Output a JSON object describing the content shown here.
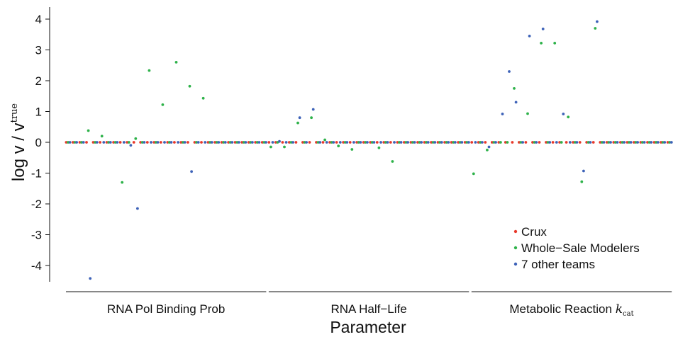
{
  "chart_data": {
    "type": "scatter",
    "xlabel": "Parameter",
    "ylabel_main": "log v / v",
    "ylabel_superscript": "true",
    "ylim": [
      -4.6,
      4.6
    ],
    "yticks": [
      4,
      3,
      2,
      1,
      0,
      -1,
      -2,
      -3,
      -4
    ],
    "ytick_labels": [
      "4",
      "3",
      "2",
      "1",
      "0",
      "-1",
      "-2",
      "-3",
      "-4"
    ],
    "grid": false,
    "legend_position": "bottom-right",
    "groups": [
      {
        "label": "RNA Pol Binding Prob",
        "label_suffix": "",
        "start": 1,
        "end": 30
      },
      {
        "label": "RNA Half−Life",
        "label_suffix": "",
        "start": 31,
        "end": 60
      },
      {
        "label": "Metabolic Reaction ",
        "label_suffix": "k",
        "label_sub": "cat",
        "start": 61,
        "end": 90
      }
    ],
    "series": [
      {
        "name": "Crux",
        "color": "#e8392b",
        "points": [
          [
            1,
            0
          ],
          [
            2,
            0
          ],
          [
            3,
            0
          ],
          [
            4,
            0
          ],
          [
            5,
            0
          ],
          [
            6,
            0
          ],
          [
            7,
            0
          ],
          [
            8,
            0
          ],
          [
            9,
            0
          ],
          [
            10,
            0
          ],
          [
            11,
            0
          ],
          [
            12,
            0
          ],
          [
            13,
            0
          ],
          [
            14,
            0
          ],
          [
            15,
            0
          ],
          [
            16,
            0
          ],
          [
            17,
            0
          ],
          [
            18,
            0
          ],
          [
            19,
            0
          ],
          [
            20,
            0
          ],
          [
            21,
            0
          ],
          [
            22,
            0
          ],
          [
            23,
            0
          ],
          [
            24,
            0
          ],
          [
            25,
            0
          ],
          [
            26,
            0
          ],
          [
            27,
            0
          ],
          [
            28,
            0
          ],
          [
            29,
            0
          ],
          [
            30,
            0
          ],
          [
            31,
            0
          ],
          [
            32,
            0
          ],
          [
            33,
            0
          ],
          [
            34,
            0
          ],
          [
            35,
            0
          ],
          [
            36,
            0
          ],
          [
            37,
            0
          ],
          [
            38,
            0
          ],
          [
            39,
            0
          ],
          [
            40,
            0
          ],
          [
            41,
            0
          ],
          [
            42,
            0
          ],
          [
            43,
            0
          ],
          [
            44,
            0
          ],
          [
            45,
            0
          ],
          [
            46,
            0
          ],
          [
            47,
            0
          ],
          [
            48,
            0
          ],
          [
            49,
            0
          ],
          [
            50,
            0
          ],
          [
            51,
            0
          ],
          [
            52,
            0
          ],
          [
            53,
            0
          ],
          [
            54,
            0
          ],
          [
            55,
            0
          ],
          [
            56,
            0
          ],
          [
            57,
            0
          ],
          [
            58,
            0
          ],
          [
            59,
            0
          ],
          [
            60,
            0
          ],
          [
            61,
            0
          ],
          [
            62,
            0
          ],
          [
            63,
            0
          ],
          [
            64,
            0
          ],
          [
            65,
            0
          ],
          [
            66,
            0
          ],
          [
            67,
            0
          ],
          [
            68,
            0
          ],
          [
            69,
            0
          ],
          [
            70,
            0
          ],
          [
            71,
            0
          ],
          [
            72,
            0
          ],
          [
            73,
            0
          ],
          [
            74,
            0
          ],
          [
            75,
            0
          ],
          [
            76,
            0
          ],
          [
            77,
            0
          ],
          [
            78,
            0
          ],
          [
            79,
            0
          ],
          [
            80,
            0
          ],
          [
            81,
            0
          ],
          [
            82,
            0
          ],
          [
            83,
            0
          ],
          [
            84,
            0
          ],
          [
            85,
            0
          ],
          [
            86,
            0
          ],
          [
            87,
            0
          ],
          [
            88,
            0
          ],
          [
            89,
            0
          ],
          [
            90,
            0
          ]
        ]
      },
      {
        "name": "Whole−Sale Modelers",
        "color": "#2eb24a",
        "points": [
          [
            1,
            0
          ],
          [
            2,
            0
          ],
          [
            3,
            0
          ],
          [
            4,
            0.38
          ],
          [
            5,
            0
          ],
          [
            6,
            0.2
          ],
          [
            7,
            0
          ],
          [
            8,
            0
          ],
          [
            9,
            -1.3
          ],
          [
            10,
            0
          ],
          [
            11,
            0.12
          ],
          [
            12,
            0
          ],
          [
            13,
            2.33
          ],
          [
            14,
            0
          ],
          [
            15,
            1.22
          ],
          [
            16,
            0
          ],
          [
            17,
            2.6
          ],
          [
            18,
            0
          ],
          [
            19,
            1.82
          ],
          [
            20,
            0
          ],
          [
            21,
            1.43
          ],
          [
            22,
            0
          ],
          [
            23,
            0
          ],
          [
            24,
            0
          ],
          [
            25,
            0
          ],
          [
            26,
            0
          ],
          [
            27,
            0
          ],
          [
            28,
            0
          ],
          [
            29,
            0
          ],
          [
            30,
            0
          ],
          [
            31,
            -0.15
          ],
          [
            32,
            0
          ],
          [
            33,
            -0.15
          ],
          [
            34,
            0
          ],
          [
            35,
            0.63
          ],
          [
            36,
            0
          ],
          [
            37,
            0.8
          ],
          [
            38,
            0
          ],
          [
            39,
            0.08
          ],
          [
            40,
            0
          ],
          [
            41,
            -0.12
          ],
          [
            42,
            0
          ],
          [
            43,
            -0.23
          ],
          [
            44,
            0
          ],
          [
            45,
            0
          ],
          [
            46,
            0
          ],
          [
            47,
            -0.18
          ],
          [
            48,
            0
          ],
          [
            49,
            -0.62
          ],
          [
            50,
            0
          ],
          [
            51,
            0
          ],
          [
            52,
            0
          ],
          [
            53,
            0
          ],
          [
            54,
            0
          ],
          [
            55,
            0
          ],
          [
            56,
            0
          ],
          [
            57,
            0
          ],
          [
            58,
            0
          ],
          [
            59,
            0
          ],
          [
            60,
            0
          ],
          [
            61,
            -1.02
          ],
          [
            62,
            0
          ],
          [
            63,
            -0.25
          ],
          [
            64,
            0
          ],
          [
            65,
            0
          ],
          [
            66,
            0
          ],
          [
            67,
            1.75
          ],
          [
            68,
            0
          ],
          [
            69,
            0.93
          ],
          [
            70,
            0
          ],
          [
            71,
            3.22
          ],
          [
            72,
            0
          ],
          [
            73,
            3.22
          ],
          [
            74,
            0
          ],
          [
            75,
            0.82
          ],
          [
            76,
            0
          ],
          [
            77,
            -1.28
          ],
          [
            78,
            0
          ],
          [
            79,
            3.7
          ],
          [
            80,
            0
          ],
          [
            81,
            0
          ],
          [
            82,
            0
          ],
          [
            83,
            0
          ],
          [
            84,
            0
          ],
          [
            85,
            0
          ],
          [
            86,
            0
          ],
          [
            87,
            0
          ],
          [
            88,
            0
          ],
          [
            89,
            0
          ],
          [
            90,
            0
          ]
        ]
      },
      {
        "name": "7 other teams",
        "color": "#3d62b8",
        "points": [
          [
            1,
            0
          ],
          [
            2,
            0
          ],
          [
            3,
            0
          ],
          [
            4,
            -4.42
          ],
          [
            5,
            0
          ],
          [
            6,
            0
          ],
          [
            7,
            0
          ],
          [
            8,
            0
          ],
          [
            9,
            0
          ],
          [
            10,
            -0.1
          ],
          [
            11,
            -2.15
          ],
          [
            12,
            0
          ],
          [
            13,
            0
          ],
          [
            14,
            0
          ],
          [
            15,
            0
          ],
          [
            16,
            0
          ],
          [
            17,
            0
          ],
          [
            18,
            0
          ],
          [
            19,
            -0.95
          ],
          [
            20,
            0
          ],
          [
            21,
            0
          ],
          [
            22,
            0
          ],
          [
            23,
            0
          ],
          [
            24,
            0
          ],
          [
            25,
            0
          ],
          [
            26,
            0
          ],
          [
            27,
            0
          ],
          [
            28,
            0
          ],
          [
            29,
            0
          ],
          [
            30,
            0
          ],
          [
            31,
            0
          ],
          [
            32,
            0.03
          ],
          [
            33,
            0
          ],
          [
            34,
            0
          ],
          [
            35,
            0.8
          ],
          [
            36,
            0
          ],
          [
            37,
            1.07
          ],
          [
            38,
            0
          ],
          [
            39,
            0
          ],
          [
            40,
            0
          ],
          [
            41,
            0
          ],
          [
            42,
            0
          ],
          [
            43,
            0
          ],
          [
            44,
            0
          ],
          [
            45,
            0
          ],
          [
            46,
            0
          ],
          [
            47,
            0
          ],
          [
            48,
            0
          ],
          [
            49,
            0
          ],
          [
            50,
            0
          ],
          [
            51,
            0
          ],
          [
            52,
            0
          ],
          [
            53,
            0
          ],
          [
            54,
            0
          ],
          [
            55,
            0
          ],
          [
            56,
            0
          ],
          [
            57,
            0
          ],
          [
            58,
            0
          ],
          [
            59,
            0
          ],
          [
            60,
            0
          ],
          [
            61,
            0
          ],
          [
            62,
            0
          ],
          [
            63,
            -0.15
          ],
          [
            64,
            0
          ],
          [
            65,
            0.92
          ],
          [
            66,
            2.3
          ],
          [
            67,
            1.3
          ],
          [
            68,
            0
          ],
          [
            69,
            3.45
          ],
          [
            70,
            0
          ],
          [
            71,
            3.68
          ],
          [
            72,
            0
          ],
          [
            73,
            0
          ],
          [
            74,
            0.92
          ],
          [
            75,
            0
          ],
          [
            76,
            0
          ],
          [
            77,
            -0.93
          ],
          [
            78,
            0
          ],
          [
            79,
            3.92
          ],
          [
            80,
            0
          ],
          [
            81,
            0
          ],
          [
            82,
            0
          ],
          [
            83,
            0
          ],
          [
            84,
            0
          ],
          [
            85,
            0
          ],
          [
            86,
            0
          ],
          [
            87,
            0
          ],
          [
            88,
            0
          ],
          [
            89,
            0
          ],
          [
            90,
            0
          ]
        ]
      }
    ]
  }
}
